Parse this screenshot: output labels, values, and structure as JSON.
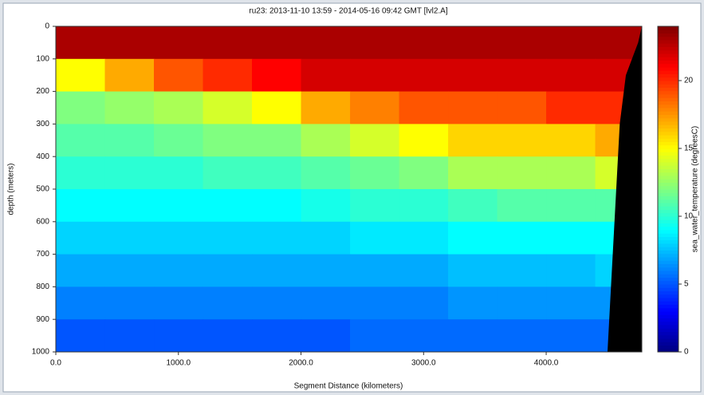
{
  "chart_data": {
    "type": "heatmap",
    "title": "ru23: 2013-11-10 13:59 - 2014-05-16 09:42 GMT [lvl2.A]",
    "x_label": "Segment Distance (kilometers)",
    "y_label": "depth (meters)",
    "colorbar_label": "sea_water_temperature (degreesC)",
    "xlim": [
      0,
      4780
    ],
    "ylim": [
      1000,
      0
    ],
    "clim": [
      0,
      24
    ],
    "xticks": [
      {
        "value": 0,
        "label": "0.0"
      },
      {
        "value": 1000,
        "label": "1000.0"
      },
      {
        "value": 2000,
        "label": "2000.0"
      },
      {
        "value": 3000,
        "label": "3000.0"
      },
      {
        "value": 4000,
        "label": "4000.0"
      }
    ],
    "yticks": [
      0,
      100,
      200,
      300,
      400,
      500,
      600,
      700,
      800,
      900,
      1000
    ],
    "cticks": [
      0,
      5,
      10,
      15,
      20
    ],
    "colormap": "jet",
    "x_bins": [
      0,
      400,
      800,
      1200,
      1600,
      2000,
      2400,
      2800,
      3200,
      3600,
      4000,
      4400,
      4800
    ],
    "y_bins": [
      0,
      100,
      200,
      300,
      400,
      500,
      600,
      700,
      800,
      900,
      1000
    ],
    "z": [
      [
        23,
        23,
        23,
        23,
        23,
        23,
        23,
        23,
        23,
        23,
        23,
        23
      ],
      [
        15,
        17,
        19,
        20,
        21,
        22,
        22,
        22,
        22,
        22,
        22,
        22
      ],
      [
        12,
        12.5,
        13,
        14,
        15,
        17,
        18,
        19,
        19,
        19,
        20,
        20
      ],
      [
        11,
        11,
        11.5,
        12,
        12,
        13,
        14,
        15,
        16,
        16,
        16,
        17
      ],
      [
        10,
        10,
        10,
        10.5,
        10.5,
        11,
        11.5,
        12,
        13,
        13,
        13,
        14
      ],
      [
        9,
        9,
        9,
        9,
        9,
        9.5,
        10,
        10,
        10.5,
        11,
        11,
        11
      ],
      [
        8,
        8,
        8,
        8,
        8,
        8,
        8.5,
        8.5,
        9,
        9,
        9,
        9
      ],
      [
        7,
        7,
        7,
        7,
        7,
        7,
        7,
        7,
        7.5,
        7.5,
        7.5,
        8
      ],
      [
        6,
        6,
        6,
        6,
        6,
        6,
        6,
        6,
        6.5,
        6.5,
        6.5,
        6.5
      ],
      [
        5,
        5,
        5,
        5,
        5,
        5,
        5.5,
        5.5,
        5.5,
        5.5,
        5.5,
        5.5
      ]
    ],
    "seafloor": {
      "color": "#000000",
      "x": [
        4500,
        4550,
        4600,
        4650,
        4700,
        4750,
        4780
      ],
      "depth": [
        1000,
        650,
        300,
        150,
        100,
        50,
        0
      ]
    }
  }
}
